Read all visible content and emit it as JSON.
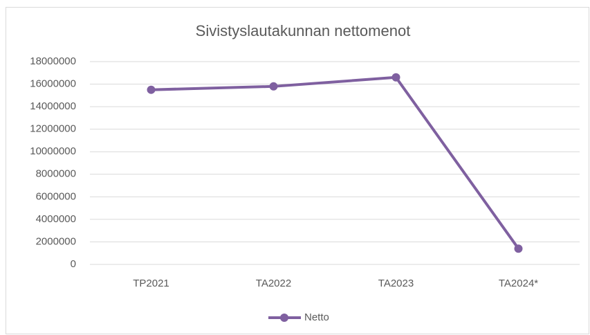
{
  "chart_data": {
    "type": "line",
    "title": "Sivistyslautakunnan nettomenot",
    "categories": [
      "TP2021",
      "TA2022",
      "TA2023",
      "TA2024*"
    ],
    "series": [
      {
        "name": "Netto",
        "color": "#7f60a0",
        "values": [
          15500000,
          15800000,
          16600000,
          1400000
        ]
      }
    ],
    "ylim": [
      0,
      18000000
    ],
    "yticks": [
      0,
      2000000,
      4000000,
      6000000,
      8000000,
      10000000,
      12000000,
      14000000,
      16000000,
      18000000
    ],
    "grid": true,
    "legend": "bottom"
  }
}
